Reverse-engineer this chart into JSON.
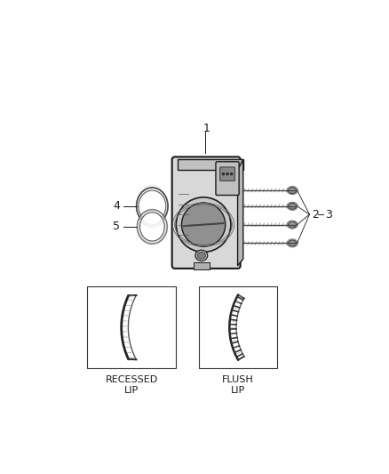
{
  "bg": "#ffffff",
  "lc": "#1a1a1a",
  "gray1": "#888888",
  "gray2": "#aaaaaa",
  "gray3": "#cccccc",
  "gray4": "#e8e8e8",
  "fig_w": 4.38,
  "fig_h": 5.33,
  "dpi": 100,
  "label1": "1",
  "label2": "2",
  "label3": "3",
  "label4": "4",
  "label5": "5",
  "bottom_label1": "RECESSED\nLIP",
  "bottom_label2": "FLUSH\nLIP"
}
